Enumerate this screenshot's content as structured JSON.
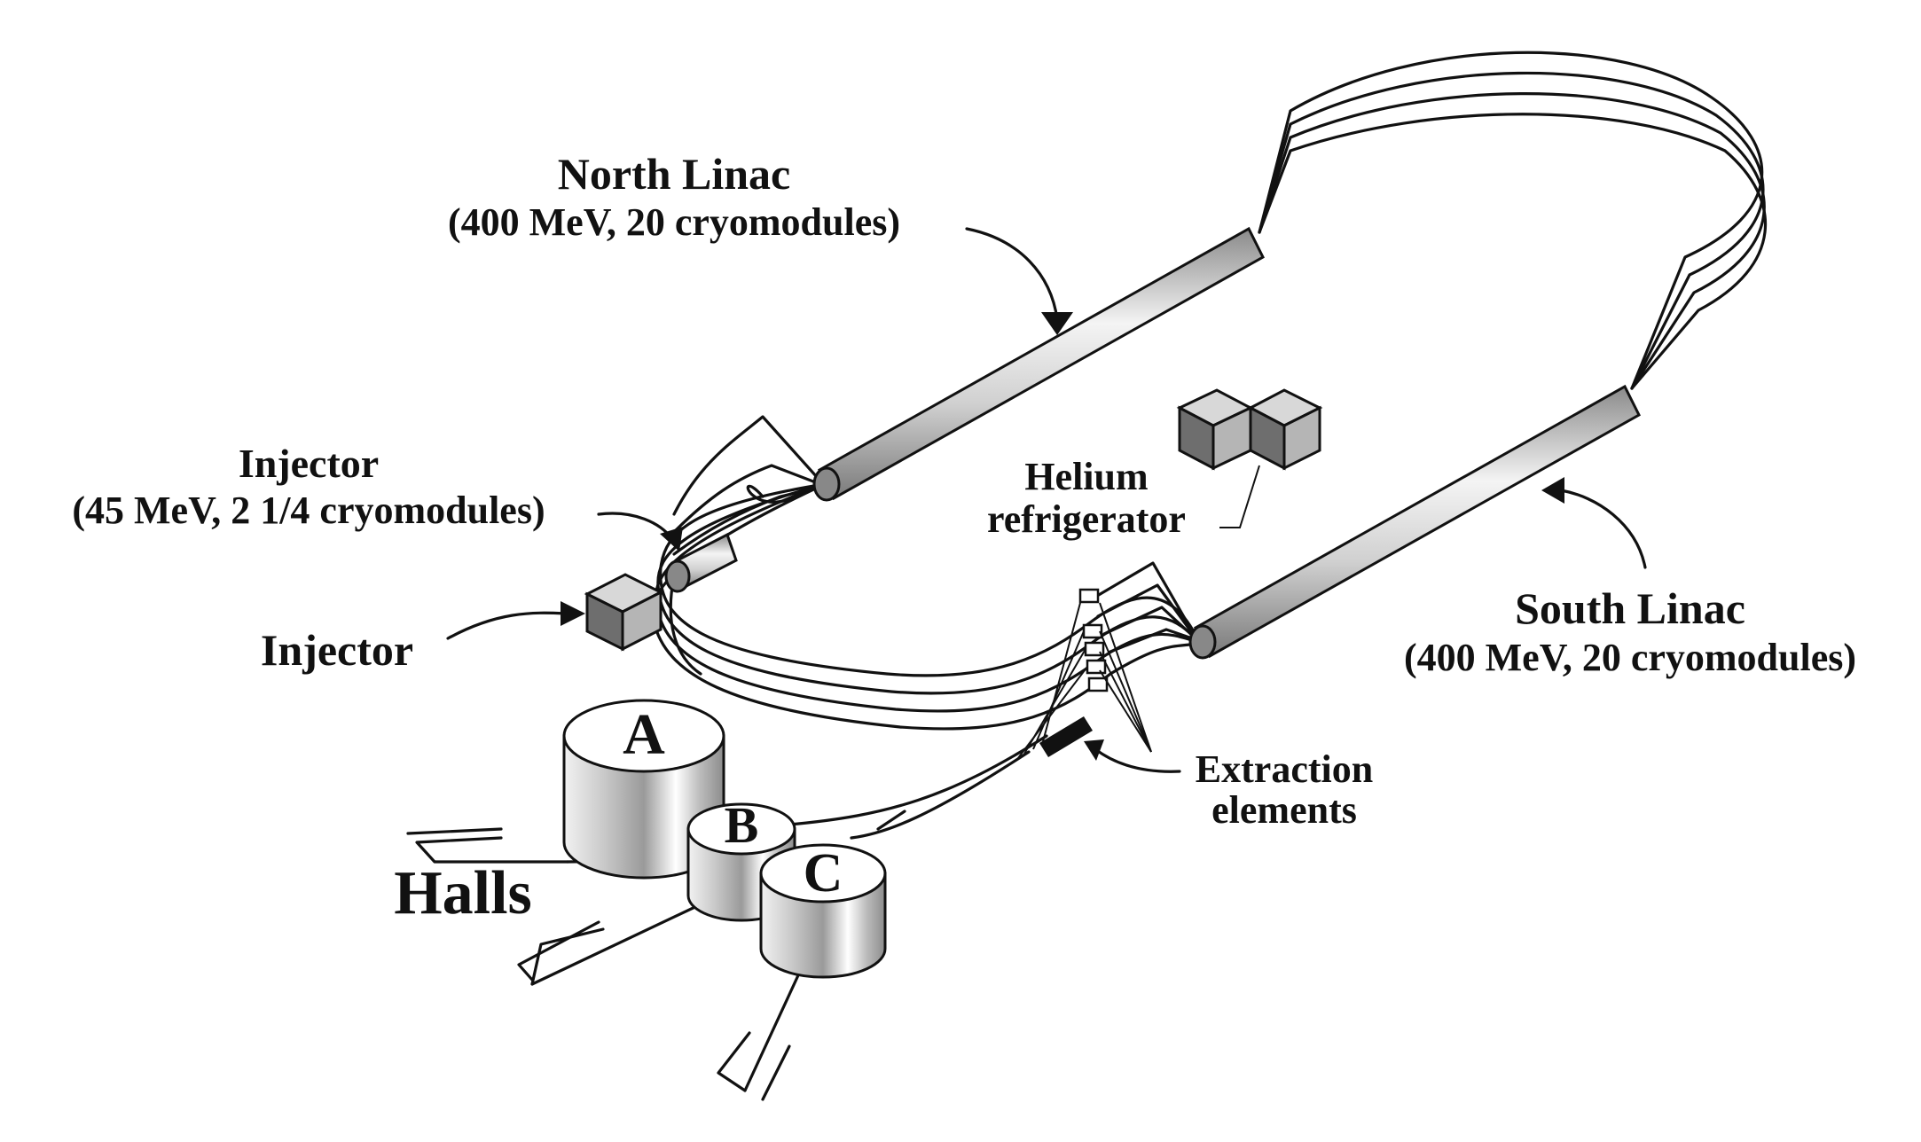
{
  "labels": {
    "north_linac_title": "North Linac",
    "north_linac_detail": "(400 MeV, 20 cryomodules)",
    "south_linac_title": "South Linac",
    "south_linac_detail": "(400 MeV, 20 cryomodules)",
    "injector_title": "Injector",
    "injector_detail": "(45 MeV, 2 1/4 cryomodules)",
    "injector_building": "Injector",
    "helium_line1": "Helium",
    "helium_line2": "refrigerator",
    "extraction_line1": "Extraction",
    "extraction_line2": "elements",
    "halls": "Halls",
    "hall_a": "A",
    "hall_b": "B",
    "hall_c": "C"
  },
  "colors": {
    "ink": "#111111",
    "pipe_light": "#f2f2f2",
    "pipe_mid": "#c8c8c8",
    "pipe_dark": "#8a8a8a",
    "cube_top": "#d8d8d8",
    "cube_left": "#6e6e6e",
    "cube_right": "#b5b5b5"
  }
}
